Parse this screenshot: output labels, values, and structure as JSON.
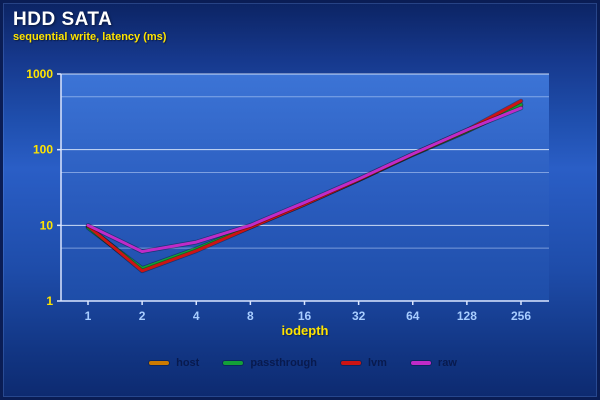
{
  "title": "HDD SATA",
  "subtitle": "sequential write, latency (ms)",
  "chart_data": {
    "type": "line",
    "title": "HDD SATA",
    "subtitle": "sequential write, latency (ms)",
    "xlabel": "iodepth",
    "ylabel": "latency (ms)",
    "x_scale": "log2",
    "y_scale": "log10",
    "ylim": [
      1,
      1000
    ],
    "x": [
      1,
      2,
      4,
      8,
      16,
      32,
      64,
      128,
      256
    ],
    "x_tick_labels": [
      "1",
      "2",
      "4",
      "8",
      "16",
      "32",
      "64",
      "128",
      "256"
    ],
    "y_major_ticks": [
      1,
      10,
      100,
      1000
    ],
    "y_minor_gridlines": [
      5,
      50,
      500
    ],
    "grid": true,
    "legend_position": "bottom",
    "series": [
      {
        "name": "host",
        "color": "#cc7a00",
        "values": [
          9.5,
          2.6,
          4.8,
          9.5,
          19,
          40,
          86,
          175,
          385
        ]
      },
      {
        "name": "passthrough",
        "color": "#13a038",
        "values": [
          9.3,
          2.7,
          4.9,
          9.6,
          19.5,
          40,
          86,
          176,
          395
        ]
      },
      {
        "name": "lvm",
        "color": "#cc1414",
        "values": [
          9.8,
          2.5,
          4.6,
          9.4,
          19,
          40,
          87,
          180,
          440
        ]
      },
      {
        "name": "raw",
        "color": "#bf2bc8",
        "values": [
          10,
          4.5,
          6.0,
          10,
          20,
          41,
          88,
          182,
          355
        ]
      }
    ]
  },
  "colors": {
    "background_top": "#0c2464",
    "background_mid": "#2a5ec6",
    "plot_top": "#3c74d6",
    "plot_bottom": "#1e4da8",
    "axis": "#dbe6ff",
    "y_tick_label": "#ffe400",
    "x_tick_label": "#a8cdff",
    "legend_text": "#081a4e"
  }
}
